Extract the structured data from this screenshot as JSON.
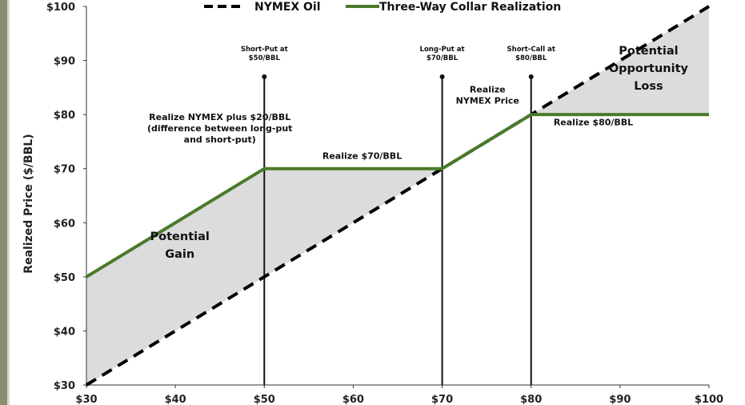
{
  "chart_data": {
    "type": "line",
    "title": "",
    "xlabel": "",
    "ylabel": "Realized Price ($/BBL)",
    "xlim": [
      30,
      100
    ],
    "ylim": [
      30,
      100
    ],
    "x_ticks": [
      "$30",
      "$40",
      "$50",
      "$60",
      "$70",
      "$80",
      "$90",
      "$100"
    ],
    "y_ticks": [
      "$30",
      "$40",
      "$50",
      "$60",
      "$70",
      "$80",
      "$90",
      "$100"
    ],
    "x_tick_values": [
      30,
      40,
      50,
      60,
      70,
      80,
      90,
      100
    ],
    "y_tick_values": [
      30,
      40,
      50,
      60,
      70,
      80,
      90,
      100
    ],
    "legend_position": "top",
    "series": [
      {
        "name": "NYMEX Oil",
        "style": "dashed",
        "color": "#000000",
        "x": [
          30,
          100
        ],
        "y": [
          30,
          100
        ]
      },
      {
        "name": "Three-Way Collar Realization",
        "style": "solid",
        "color": "#4a7a2a",
        "x": [
          30,
          50,
          70,
          80,
          100
        ],
        "y": [
          50,
          70,
          70,
          80,
          80
        ]
      }
    ],
    "shading_color": "#dcdcdc",
    "vertical_markers": [
      {
        "x": 50,
        "y_top": 87,
        "label_lines": [
          "Short-Put at",
          "$50/BBL"
        ]
      },
      {
        "x": 70,
        "y_top": 87,
        "label_lines": [
          "Long-Put at",
          "$70/BBL"
        ]
      },
      {
        "x": 80,
        "y_top": 87,
        "label_lines": [
          "Short-Call at",
          "$80/BBL"
        ]
      }
    ],
    "annotations": [
      {
        "id": "realize-plus-20",
        "lines": [
          "Realize NYMEX plus $20/BBL",
          "(difference between long-put",
          "and short-put)"
        ],
        "x": 45,
        "y": 79
      },
      {
        "id": "realize-70",
        "lines": [
          "Realize $70/BBL"
        ],
        "x": 61,
        "y": 71.8
      },
      {
        "id": "realize-nymex",
        "lines": [
          "Realize",
          "NYMEX Price"
        ],
        "x": 75.1,
        "y": 84.1
      },
      {
        "id": "realize-80",
        "lines": [
          "Realize $80/BBL"
        ],
        "x": 87,
        "y": 78
      },
      {
        "id": "potential-gain",
        "lines": [
          "Potential",
          "Gain"
        ],
        "x": 40.5,
        "y": 56.8,
        "big": true
      },
      {
        "id": "potential-loss",
        "lines": [
          "Potential",
          "Opportunity",
          "Loss"
        ],
        "x": 93.2,
        "y": 91.1,
        "big": true
      }
    ]
  }
}
